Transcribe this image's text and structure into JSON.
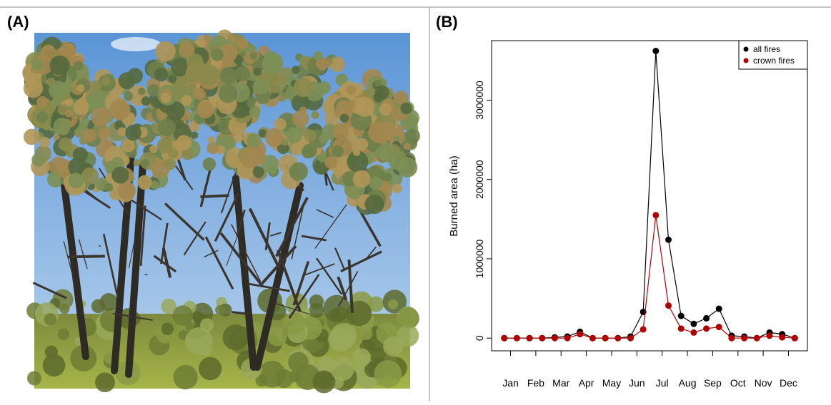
{
  "panel_a": {
    "label": "(A)"
  },
  "chart_data": {
    "type": "line",
    "panel_label": "(B)",
    "y_label": "Burned area (ha)",
    "x": [
      1,
      2,
      3,
      4,
      5,
      6,
      7,
      8,
      9,
      10,
      11,
      12,
      13,
      14,
      15,
      16,
      17,
      18,
      19,
      20,
      21,
      22,
      23,
      24
    ],
    "series": [
      {
        "name": "all fires",
        "color": "#000000",
        "values": [
          0,
          0,
          0,
          0,
          10000,
          20000,
          80000,
          0,
          0,
          0,
          20000,
          330000,
          3620000,
          1240000,
          280000,
          180000,
          250000,
          370000,
          30000,
          20000,
          0,
          70000,
          50000,
          0
        ]
      },
      {
        "name": "crown fires",
        "color": "#b00000",
        "values": [
          0,
          0,
          0,
          0,
          0,
          0,
          50000,
          0,
          0,
          0,
          0,
          110000,
          1550000,
          410000,
          120000,
          70000,
          120000,
          140000,
          0,
          0,
          0,
          30000,
          10000,
          0
        ]
      }
    ],
    "xlim": [
      0,
      25
    ],
    "ylim": [
      -160000,
      3750000
    ],
    "xticks": [
      {
        "value": 1.5,
        "label": "Jan"
      },
      {
        "value": 3.5,
        "label": "Feb"
      },
      {
        "value": 5.5,
        "label": "Mar"
      },
      {
        "value": 7.5,
        "label": "Apr"
      },
      {
        "value": 9.5,
        "label": "May"
      },
      {
        "value": 11.5,
        "label": "Jun"
      },
      {
        "value": 13.5,
        "label": "Jul"
      },
      {
        "value": 15.5,
        "label": "Aug"
      },
      {
        "value": 17.5,
        "label": "Sep"
      },
      {
        "value": 19.5,
        "label": "Oct"
      },
      {
        "value": 21.5,
        "label": "Nov"
      },
      {
        "value": 23.5,
        "label": "Dec"
      }
    ],
    "yticks": [
      0,
      1000000,
      2000000,
      3000000
    ],
    "legend": "top-right",
    "grid": false
  }
}
